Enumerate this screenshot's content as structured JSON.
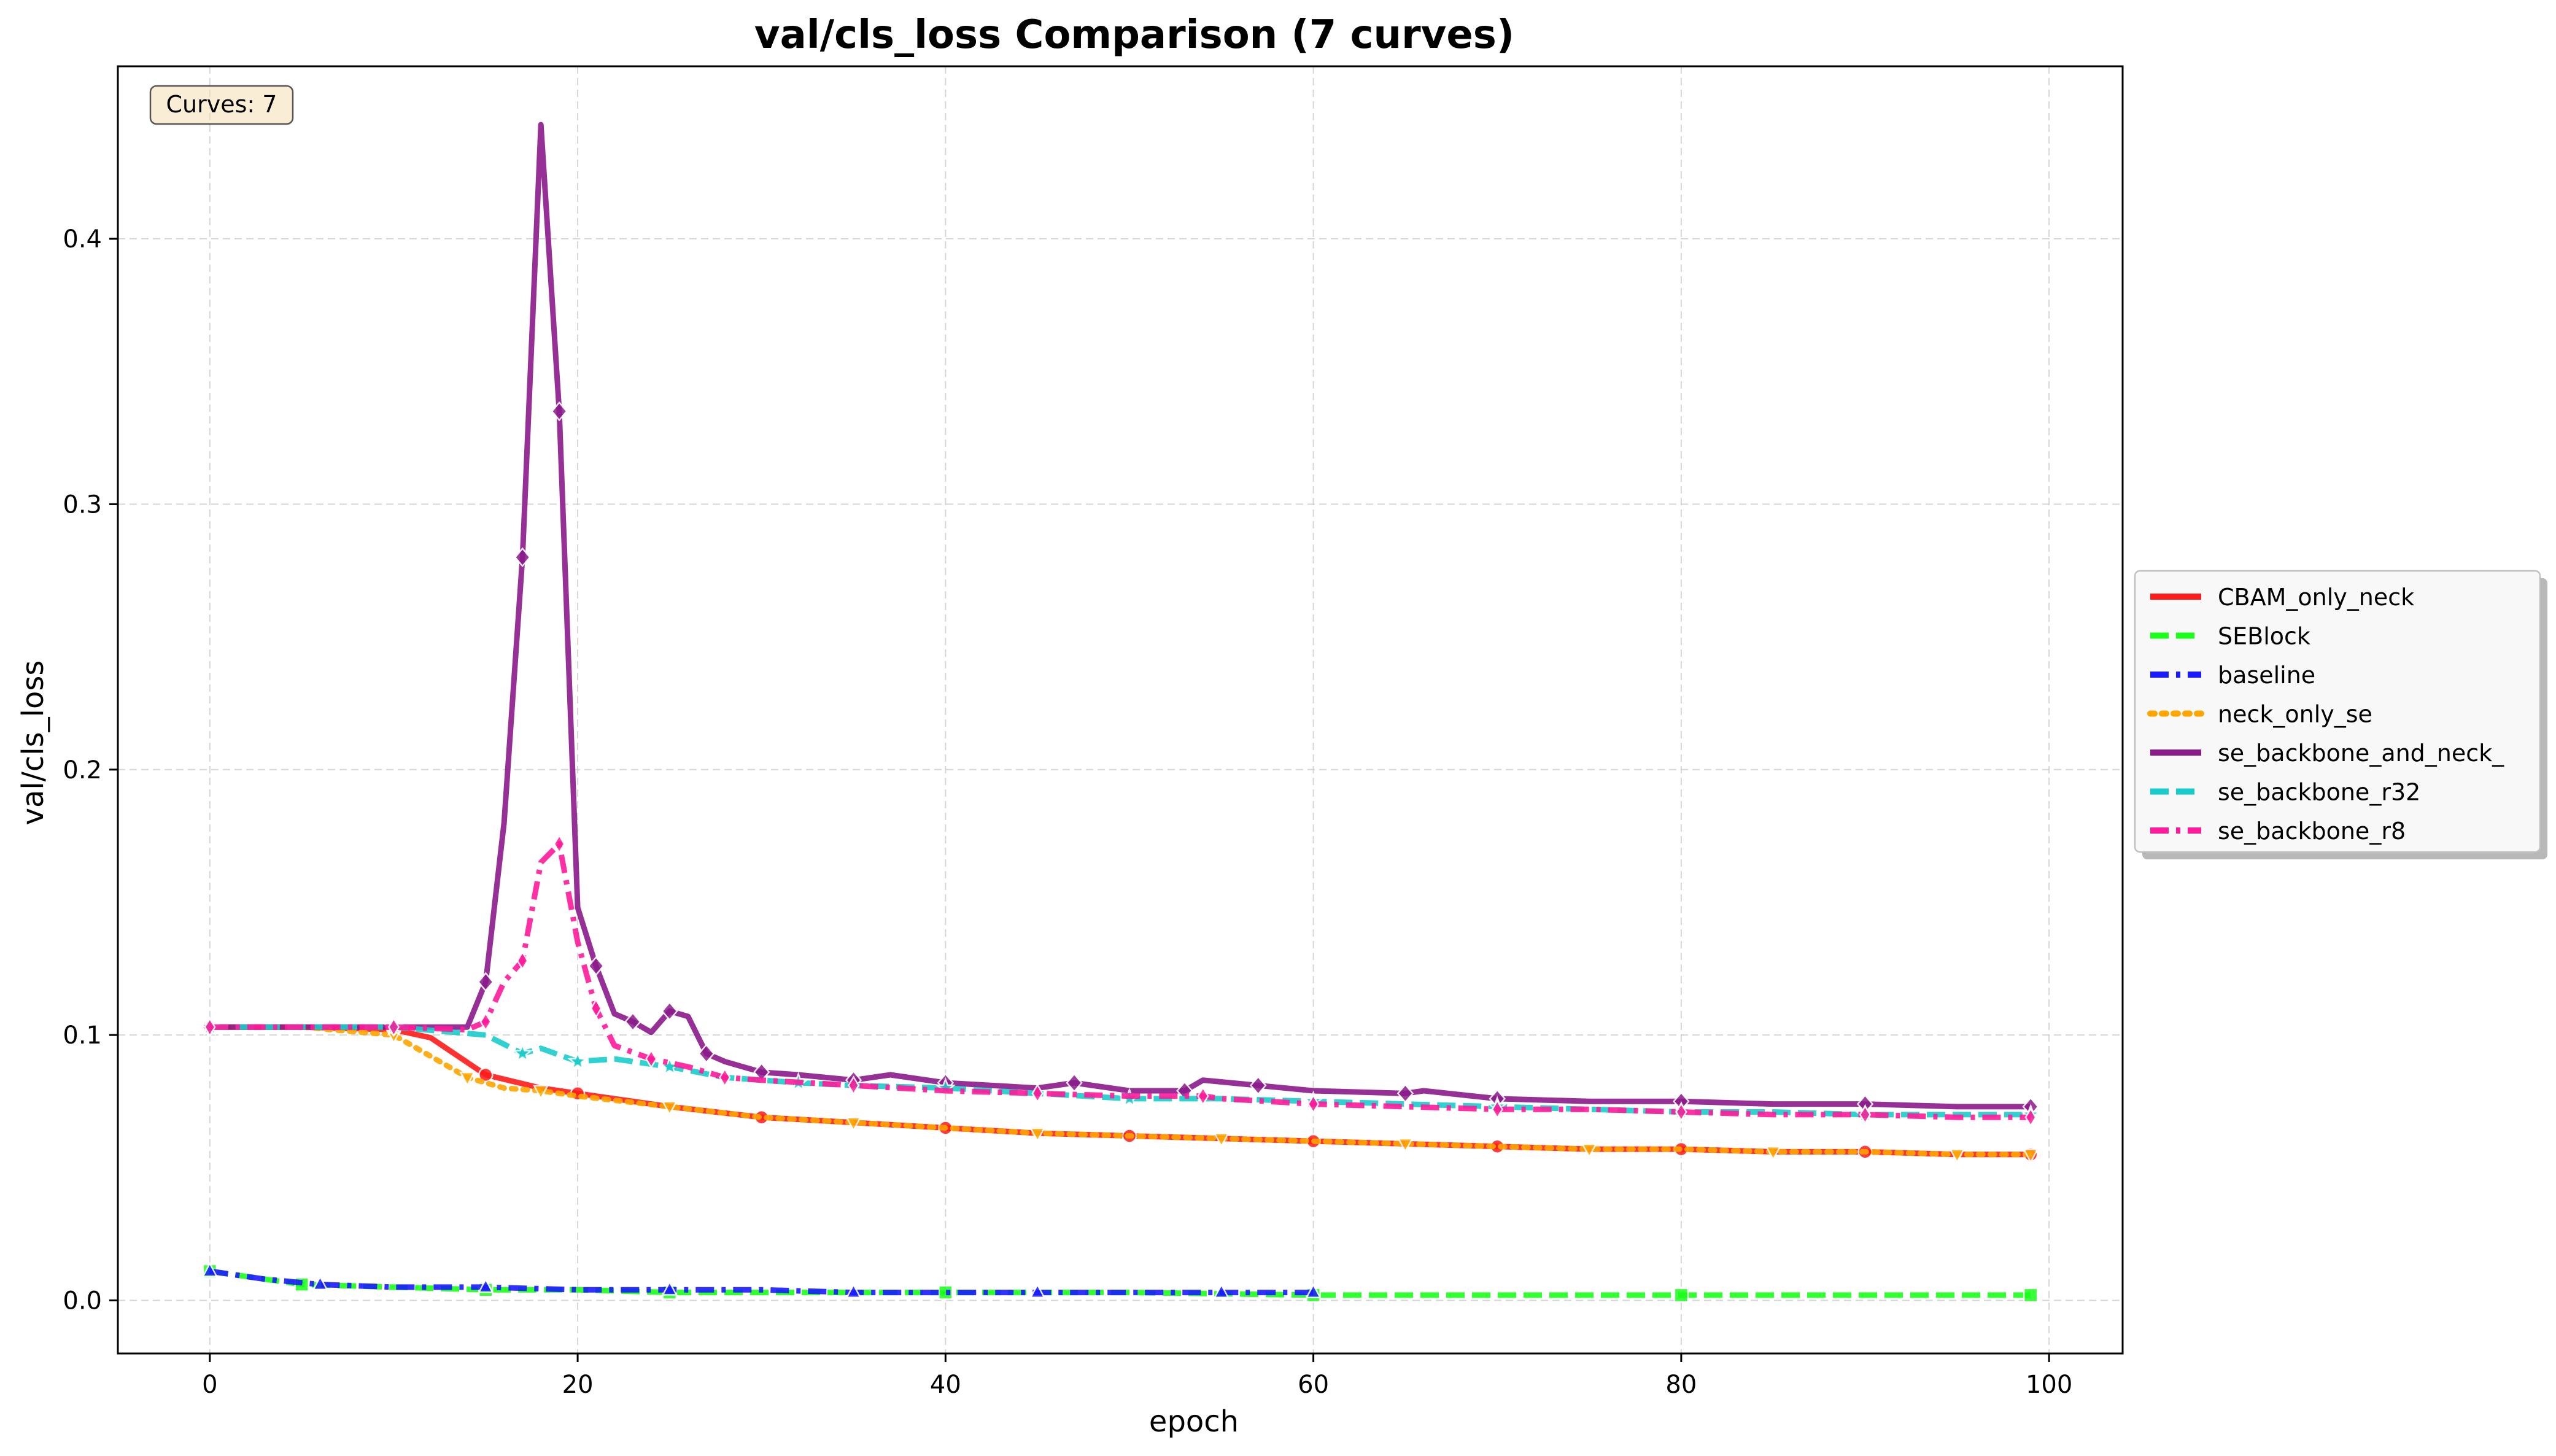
{
  "chart_data": {
    "type": "line",
    "title": "val/cls_loss Comparison (7 curves)",
    "xlabel": "epoch",
    "ylabel": "val/cls_loss",
    "xlim": [
      -5,
      104
    ],
    "ylim": [
      -0.02,
      0.465
    ],
    "xticks": [
      0,
      20,
      40,
      60,
      80,
      100
    ],
    "yticks": [
      0.0,
      0.1,
      0.2,
      0.3,
      0.4
    ],
    "xtick_labels": [
      "0",
      "20",
      "40",
      "60",
      "80",
      "100"
    ],
    "ytick_labels": [
      "0.0",
      "0.1",
      "0.2",
      "0.3",
      "0.4"
    ],
    "grid": true,
    "legend_position": "outside-right",
    "annotation": "Curves: 7",
    "series": [
      {
        "name": "CBAM_only_neck",
        "color": "#ff1a1a",
        "dash": "solid",
        "marker": "circle",
        "points": [
          [
            0,
            0.103
          ],
          [
            5,
            0.103
          ],
          [
            10,
            0.102
          ],
          [
            12,
            0.099
          ],
          [
            15,
            0.085
          ],
          [
            18,
            0.08
          ],
          [
            20,
            0.078
          ],
          [
            25,
            0.073
          ],
          [
            30,
            0.069
          ],
          [
            35,
            0.067
          ],
          [
            40,
            0.065
          ],
          [
            45,
            0.063
          ],
          [
            50,
            0.062
          ],
          [
            55,
            0.061
          ],
          [
            60,
            0.06
          ],
          [
            65,
            0.059
          ],
          [
            70,
            0.058
          ],
          [
            75,
            0.057
          ],
          [
            80,
            0.057
          ],
          [
            85,
            0.056
          ],
          [
            90,
            0.056
          ],
          [
            95,
            0.055
          ],
          [
            99,
            0.055
          ]
        ]
      },
      {
        "name": "SEBlock",
        "color": "#19ff19",
        "dash": "dashed",
        "marker": "square",
        "points": [
          [
            0,
            0.011
          ],
          [
            3,
            0.008
          ],
          [
            5,
            0.006
          ],
          [
            10,
            0.005
          ],
          [
            15,
            0.004
          ],
          [
            20,
            0.004
          ],
          [
            25,
            0.003
          ],
          [
            30,
            0.003
          ],
          [
            40,
            0.003
          ],
          [
            50,
            0.003
          ],
          [
            60,
            0.002
          ],
          [
            70,
            0.002
          ],
          [
            80,
            0.002
          ],
          [
            90,
            0.002
          ],
          [
            99,
            0.002
          ]
        ]
      },
      {
        "name": "baseline",
        "color": "#1a1aff",
        "dash": "dashdot",
        "marker": "triangle",
        "points": [
          [
            0,
            0.011
          ],
          [
            3,
            0.008
          ],
          [
            6,
            0.006
          ],
          [
            10,
            0.005
          ],
          [
            15,
            0.005
          ],
          [
            20,
            0.004
          ],
          [
            25,
            0.004
          ],
          [
            30,
            0.004
          ],
          [
            35,
            0.003
          ],
          [
            40,
            0.003
          ],
          [
            45,
            0.003
          ],
          [
            50,
            0.003
          ],
          [
            55,
            0.003
          ],
          [
            60,
            0.003
          ]
        ]
      },
      {
        "name": "neck_only_se",
        "color": "#ffa500",
        "dash": "dotted",
        "marker": "triangle-down",
        "points": [
          [
            0,
            0.103
          ],
          [
            5,
            0.103
          ],
          [
            10,
            0.1
          ],
          [
            12,
            0.092
          ],
          [
            14,
            0.084
          ],
          [
            16,
            0.08
          ],
          [
            18,
            0.079
          ],
          [
            20,
            0.077
          ],
          [
            25,
            0.073
          ],
          [
            30,
            0.069
          ],
          [
            35,
            0.067
          ],
          [
            40,
            0.065
          ],
          [
            45,
            0.063
          ],
          [
            50,
            0.062
          ],
          [
            55,
            0.061
          ],
          [
            60,
            0.06
          ],
          [
            65,
            0.059
          ],
          [
            70,
            0.058
          ],
          [
            75,
            0.057
          ],
          [
            80,
            0.057
          ],
          [
            85,
            0.056
          ],
          [
            90,
            0.056
          ],
          [
            95,
            0.055
          ],
          [
            99,
            0.055
          ]
        ]
      },
      {
        "name": "se_backbone_and_neck_",
        "color": "#8b1a8b",
        "dash": "solid",
        "marker": "diamond",
        "points": [
          [
            0,
            0.103
          ],
          [
            5,
            0.103
          ],
          [
            10,
            0.103
          ],
          [
            14,
            0.103
          ],
          [
            15,
            0.12
          ],
          [
            16,
            0.18
          ],
          [
            17,
            0.28
          ],
          [
            18,
            0.443
          ],
          [
            19,
            0.335
          ],
          [
            20,
            0.148
          ],
          [
            21,
            0.126
          ],
          [
            22,
            0.108
          ],
          [
            23,
            0.105
          ],
          [
            24,
            0.101
          ],
          [
            25,
            0.109
          ],
          [
            26,
            0.107
          ],
          [
            27,
            0.093
          ],
          [
            28,
            0.09
          ],
          [
            30,
            0.086
          ],
          [
            32,
            0.085
          ],
          [
            35,
            0.083
          ],
          [
            37,
            0.085
          ],
          [
            40,
            0.082
          ],
          [
            45,
            0.08
          ],
          [
            47,
            0.082
          ],
          [
            50,
            0.079
          ],
          [
            53,
            0.079
          ],
          [
            54,
            0.083
          ],
          [
            57,
            0.081
          ],
          [
            60,
            0.079
          ],
          [
            65,
            0.078
          ],
          [
            66,
            0.079
          ],
          [
            70,
            0.076
          ],
          [
            75,
            0.075
          ],
          [
            80,
            0.075
          ],
          [
            85,
            0.074
          ],
          [
            90,
            0.074
          ],
          [
            95,
            0.073
          ],
          [
            99,
            0.073
          ]
        ]
      },
      {
        "name": "se_backbone_r32",
        "color": "#19cccc",
        "dash": "dashed",
        "marker": "star",
        "points": [
          [
            0,
            0.103
          ],
          [
            5,
            0.103
          ],
          [
            10,
            0.103
          ],
          [
            15,
            0.1
          ],
          [
            17,
            0.093
          ],
          [
            18,
            0.095
          ],
          [
            20,
            0.09
          ],
          [
            22,
            0.091
          ],
          [
            25,
            0.088
          ],
          [
            28,
            0.084
          ],
          [
            32,
            0.082
          ],
          [
            35,
            0.081
          ],
          [
            40,
            0.08
          ],
          [
            45,
            0.078
          ],
          [
            50,
            0.076
          ],
          [
            55,
            0.076
          ],
          [
            60,
            0.075
          ],
          [
            65,
            0.074
          ],
          [
            70,
            0.073
          ],
          [
            75,
            0.072
          ],
          [
            80,
            0.071
          ],
          [
            85,
            0.071
          ],
          [
            90,
            0.07
          ],
          [
            95,
            0.07
          ],
          [
            99,
            0.07
          ]
        ]
      },
      {
        "name": "se_backbone_r8",
        "color": "#ff1a99",
        "dash": "dashdot",
        "marker": "diamond-thin",
        "points": [
          [
            0,
            0.103
          ],
          [
            5,
            0.103
          ],
          [
            10,
            0.103
          ],
          [
            14,
            0.102
          ],
          [
            15,
            0.105
          ],
          [
            16,
            0.12
          ],
          [
            17,
            0.128
          ],
          [
            18,
            0.165
          ],
          [
            19,
            0.172
          ],
          [
            20,
            0.135
          ],
          [
            21,
            0.11
          ],
          [
            22,
            0.096
          ],
          [
            24,
            0.091
          ],
          [
            26,
            0.088
          ],
          [
            28,
            0.084
          ],
          [
            30,
            0.083
          ],
          [
            35,
            0.081
          ],
          [
            40,
            0.079
          ],
          [
            45,
            0.078
          ],
          [
            50,
            0.077
          ],
          [
            54,
            0.077
          ],
          [
            55,
            0.076
          ],
          [
            60,
            0.074
          ],
          [
            65,
            0.073
          ],
          [
            70,
            0.072
          ],
          [
            75,
            0.072
          ],
          [
            80,
            0.071
          ],
          [
            85,
            0.07
          ],
          [
            90,
            0.07
          ],
          [
            95,
            0.069
          ],
          [
            99,
            0.069
          ]
        ]
      }
    ]
  }
}
